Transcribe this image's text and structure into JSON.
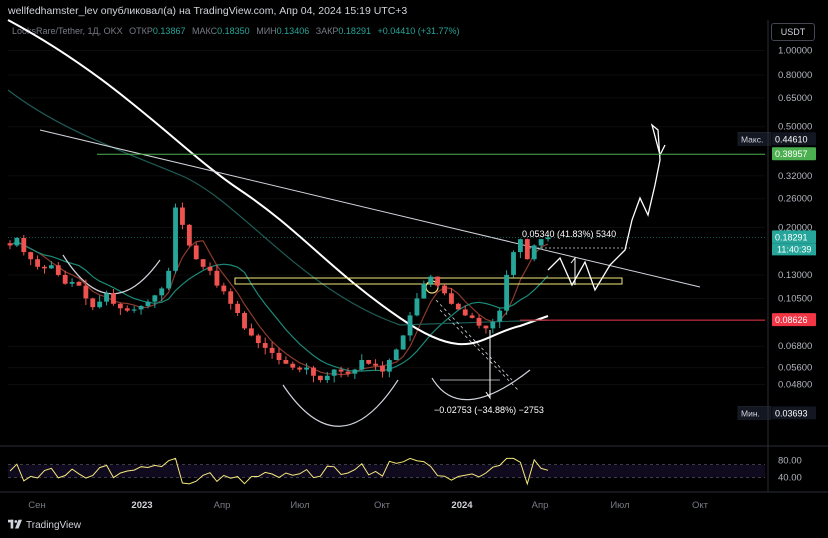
{
  "header": {
    "caption": "wellfedhamster_lev опубликовал(а) на TradingView.com, Апр 04, 2024 15:19 UTC+3"
  },
  "legend": {
    "symbol": "LooksRare/Tether, 1Д, OKX",
    "open_label": "ОТКР",
    "open": "0.13867",
    "high_label": "МАКС",
    "high": "0.18350",
    "low_label": "МИН",
    "low": "0.13406",
    "close_label": "ЗАКР",
    "close": "0.18291",
    "change": "+0.04410 (+31.77%)"
  },
  "currency_button": "USDT",
  "footer": {
    "brand": "TradingView"
  },
  "colors": {
    "up": "#26a69a",
    "down": "#ef5350",
    "green_line": "#4caf50",
    "red_line": "#f23645",
    "yellow": "#f5e87a",
    "white": "#ffffff",
    "teal_ma": "#1b8a78",
    "brown_ma": "#8b3a2c"
  },
  "chart_data": {
    "type": "candlestick",
    "y_scale": "log",
    "ylim": [
      0.029,
      1.1
    ],
    "x_ticks": [
      "Сен",
      "2023",
      "Апр",
      "Июл",
      "Окт",
      "2024",
      "Апр",
      "Июл",
      "Окт"
    ],
    "y_ticks": [
      "1.00000",
      "0.80000",
      "0.65000",
      "0.50000",
      "0.32000",
      "0.26000",
      "0.20000",
      "0.13000",
      "0.10500",
      "0.06800",
      "0.05600",
      "0.04800"
    ],
    "price_labels": [
      {
        "label": "Макс.",
        "value": "0.44610",
        "kind": "max"
      },
      {
        "value": "0.38957",
        "kind": "green"
      },
      {
        "value": "0.18291",
        "kind": "last",
        "extra": "11:40:39"
      },
      {
        "value": "0.08626",
        "kind": "red"
      },
      {
        "label": "Мин.",
        "value": "0.03693",
        "kind": "min"
      }
    ],
    "horizontal_levels": [
      {
        "name": "resistance",
        "value": 0.38957
      },
      {
        "name": "support",
        "value": 0.08626
      }
    ],
    "annotations": {
      "top_measure": "0.05340 (41.83%) 5340",
      "bottom_measure": "−0.02753 (−34.88%) −2753"
    },
    "oscillator": {
      "y_ticks": [
        "80.00",
        "40.00"
      ],
      "band": [
        40,
        70
      ]
    },
    "close_series": [
      0.17,
      0.182,
      0.16,
      0.15,
      0.14,
      0.138,
      0.142,
      0.13,
      0.12,
      0.122,
      0.118,
      0.105,
      0.097,
      0.102,
      0.11,
      0.1,
      0.096,
      0.094,
      0.095,
      0.098,
      0.102,
      0.108,
      0.115,
      0.135,
      0.24,
      0.205,
      0.17,
      0.15,
      0.14,
      0.135,
      0.118,
      0.112,
      0.1,
      0.092,
      0.08,
      0.075,
      0.07,
      0.067,
      0.064,
      0.06,
      0.058,
      0.056,
      0.055,
      0.056,
      0.052,
      0.05,
      0.052,
      0.055,
      0.054,
      0.053,
      0.055,
      0.06,
      0.058,
      0.057,
      0.054,
      0.06,
      0.066,
      0.075,
      0.09,
      0.105,
      0.12,
      0.128,
      0.118,
      0.11,
      0.1,
      0.095,
      0.09,
      0.088,
      0.082,
      0.08,
      0.085,
      0.094,
      0.13,
      0.16,
      0.18,
      0.15,
      0.17,
      0.18,
      0.18291
    ]
  }
}
